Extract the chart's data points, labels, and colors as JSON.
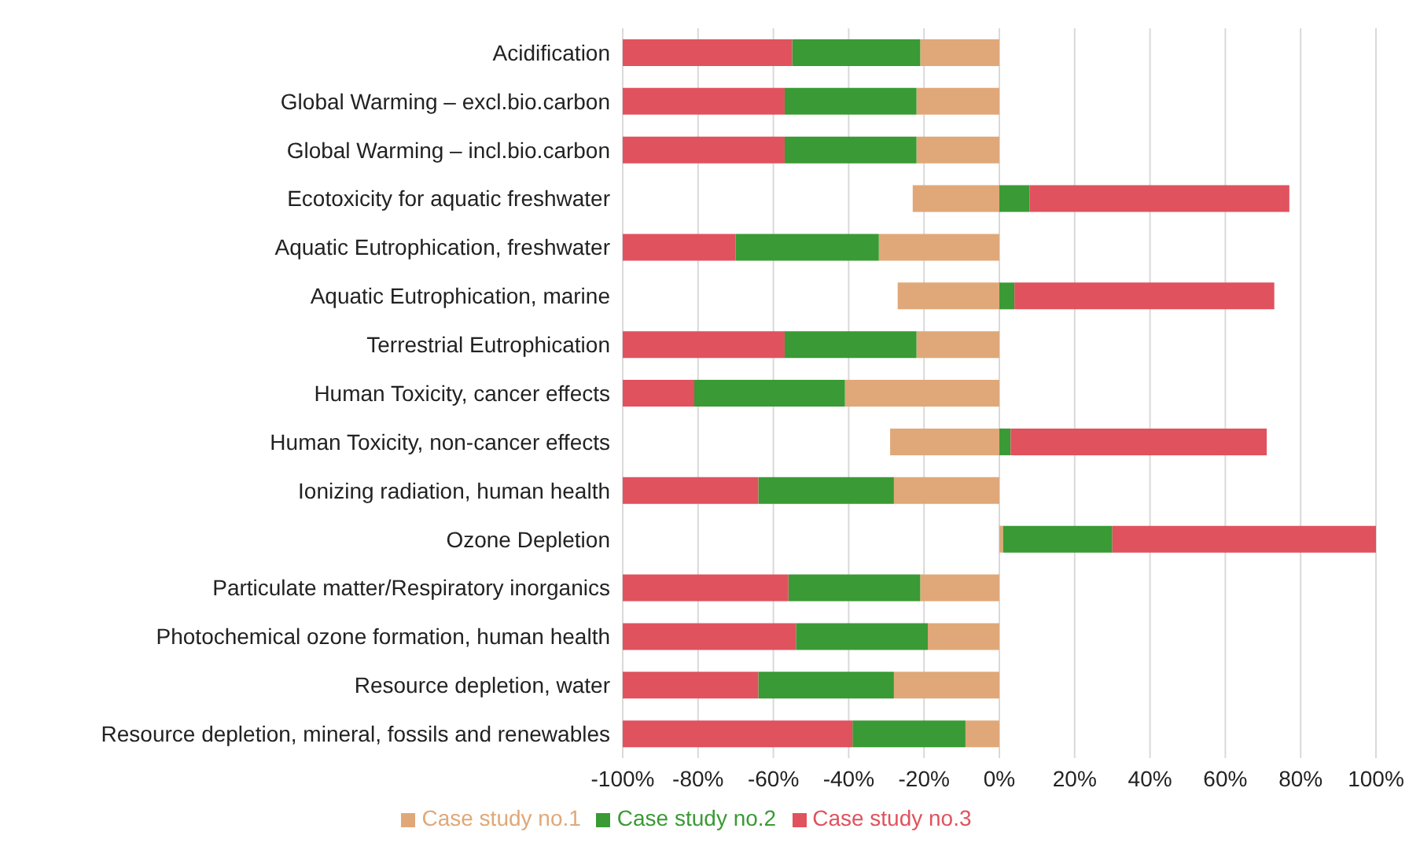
{
  "chart_data": {
    "type": "bar",
    "orientation": "horizontal",
    "stacked": true,
    "categories": [
      "Acidification",
      "Global Warming – excl.bio.carbon",
      "Global Warming  – incl.bio.carbon",
      "Ecotoxicity for aquatic freshwater",
      "Aquatic Eutrophication, freshwater",
      "Aquatic Eutrophication, marine",
      "Terrestrial Eutrophication",
      "Human Toxicity, cancer effects",
      "Human Toxicity, non-cancer effects",
      "Ionizing radiation, human health",
      "Ozone Depletion",
      "Particulate matter/Respiratory inorganics",
      "Photochemical ozone formation, human health",
      "Resource depletion, water",
      "Resource depletion, mineral, fossils and renewables"
    ],
    "series": [
      {
        "name": "Case study no.1",
        "color": "#e0a878",
        "values": [
          -21,
          -22,
          -22,
          -23,
          -32,
          -27,
          -22,
          -41,
          -29,
          -28,
          1,
          -21,
          -19,
          -28,
          -9
        ]
      },
      {
        "name": "Case study no.2",
        "color": "#3a9a35",
        "values": [
          -34,
          -35,
          -35,
          8,
          -38,
          4,
          -35,
          -40,
          3,
          -36,
          29,
          -35,
          -35,
          -36,
          -30
        ]
      },
      {
        "name": "Case study no.3",
        "color": "#e0525e",
        "values": [
          -45,
          -43,
          -43,
          69,
          -30,
          69,
          -43,
          -19,
          68,
          -36,
          70,
          -44,
          -46,
          -36,
          -61
        ]
      }
    ],
    "xlim": [
      -100,
      100
    ],
    "xticks": [
      {
        "value": -100,
        "label": "-100%"
      },
      {
        "value": -80,
        "label": "-80%"
      },
      {
        "value": -60,
        "label": "-60%"
      },
      {
        "value": -40,
        "label": "-40%"
      },
      {
        "value": -20,
        "label": "-20%"
      },
      {
        "value": 0,
        "label": "0%"
      },
      {
        "value": 20,
        "label": "20%"
      },
      {
        "value": 40,
        "label": "40%"
      },
      {
        "value": 60,
        "label": "60%"
      },
      {
        "value": 80,
        "label": "80%"
      },
      {
        "value": 100,
        "label": "100%"
      }
    ],
    "grid": "x",
    "legend": "bottom"
  }
}
